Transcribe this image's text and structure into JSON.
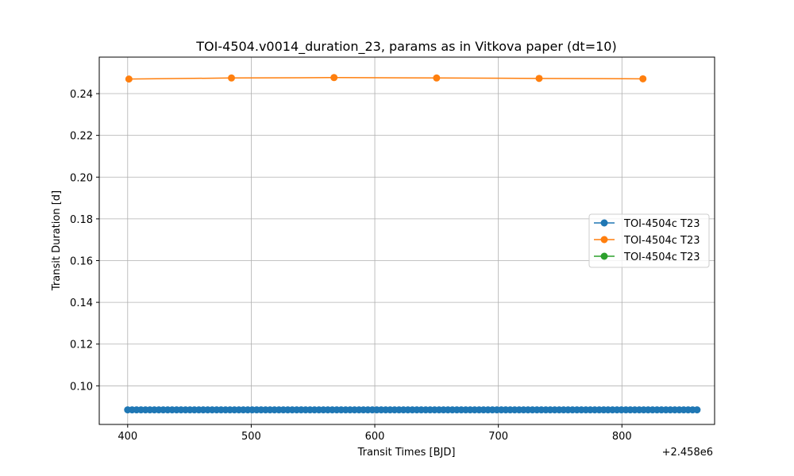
{
  "chart_data": {
    "type": "line",
    "title": "TOI-4504.v0014_duration_23, params as in Vitkova paper (dt=10)",
    "xlabel": "Transit Times [BJD]",
    "ylabel": "Transit Duration [d]",
    "x_offset_label": "+2.458e6",
    "xlim": [
      377,
      875
    ],
    "ylim": [
      0.0815,
      0.2575
    ],
    "xticks": [
      400,
      500,
      600,
      700,
      800
    ],
    "xtick_labels": [
      "400",
      "500",
      "600",
      "700",
      "800"
    ],
    "yticks": [
      0.1,
      0.12,
      0.14,
      0.16,
      0.18,
      0.2,
      0.22,
      0.24
    ],
    "ytick_labels": [
      "0.10",
      "0.12",
      "0.14",
      "0.16",
      "0.18",
      "0.20",
      "0.22",
      "0.24"
    ],
    "grid": true,
    "legend_position": "center-right",
    "series": [
      {
        "name": "TOI-4504c T23",
        "color": "#1f77b4",
        "marker": "circle",
        "x_range": [
          400,
          862
        ],
        "x_step": 3.6,
        "y_constant": 0.0885
      },
      {
        "name": "TOI-4504c T23",
        "color": "#ff7f0e",
        "marker": "circle",
        "x": [
          401,
          484,
          567,
          650,
          733,
          817
        ],
        "y": [
          0.247,
          0.2475,
          0.2477,
          0.2475,
          0.2473,
          0.2471
        ]
      },
      {
        "name": "TOI-4504c T23",
        "color": "#2ca02c",
        "marker": "circle",
        "x": [],
        "y": []
      }
    ]
  }
}
